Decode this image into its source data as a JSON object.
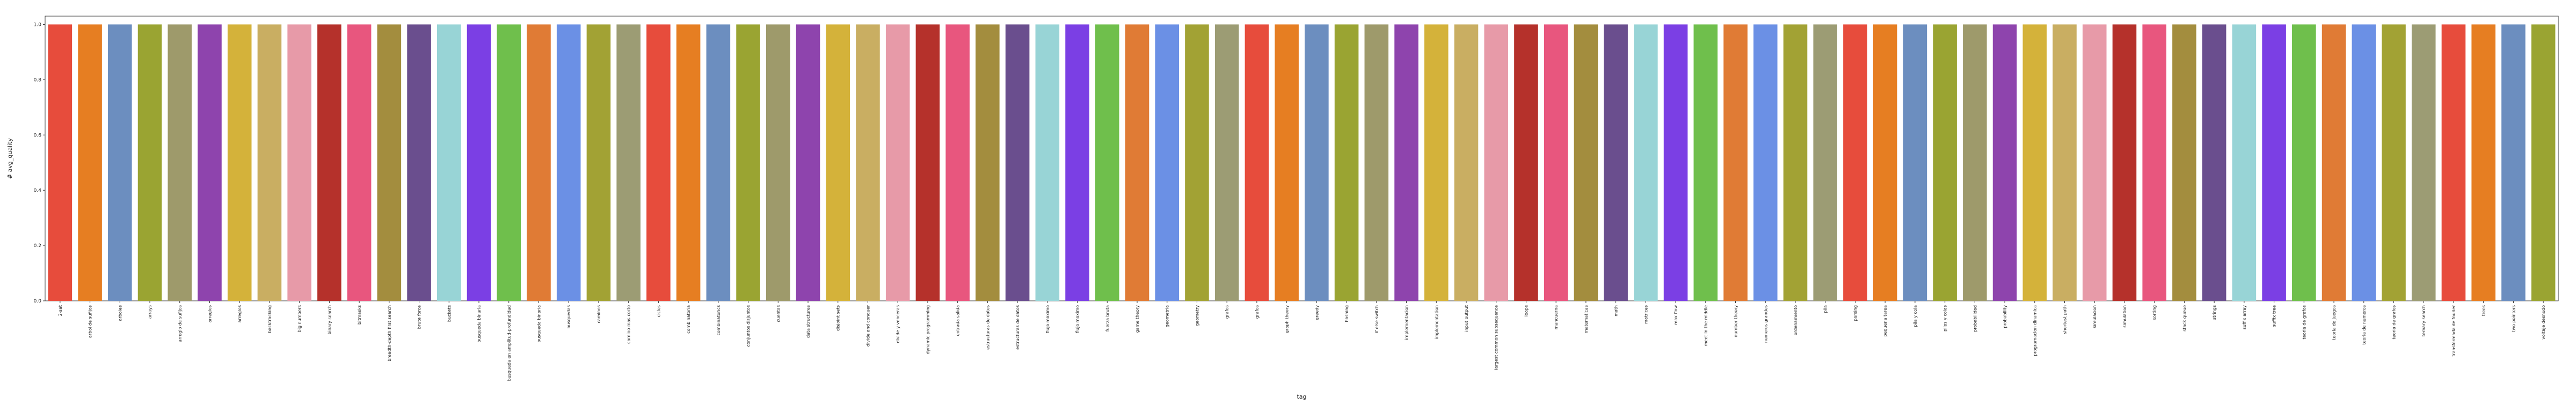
{
  "chart_data": {
    "type": "bar",
    "title": "",
    "xlabel": "tag",
    "ylabel": "# avg_quality",
    "ylim": [
      0,
      1.03
    ],
    "yticks": [
      0.0,
      0.2,
      0.4,
      0.6,
      0.8,
      1.0
    ],
    "ytick_labels": [
      "0.0",
      "0.2",
      "0.4",
      "0.6",
      "0.8",
      "1.0"
    ],
    "grid": false,
    "legend": "none",
    "palette": [
      "#e74c3c",
      "#e67e22",
      "#6c8ebf",
      "#9aa432",
      "#9e9a6b",
      "#8e44ad",
      "#d4b23a",
      "#c9ae62",
      "#e79aa8",
      "#b5312b",
      "#e8567e",
      "#a38d3e",
      "#6a4e8e",
      "#98d4d6",
      "#7b3fe4",
      "#6fbf4c",
      "#e07b35",
      "#6b90e5",
      "#a2a234",
      "#9c9c74"
    ],
    "categories": [
      "2-sat",
      "arbol de sufijos",
      "arboles",
      "arrays",
      "arreglo de sufijos",
      "arreglos",
      "arreglos",
      "backtracking",
      "big numbers",
      "binary search",
      "bitmasks",
      "breadth-depth first search",
      "brute force",
      "buckets",
      "busqueda binaria",
      "busqueda en amplitud-profundidad",
      "busqueda binaria",
      "busquedas",
      "caminos",
      "camino mas corto",
      "ciclos",
      "combinatoria",
      "combinatorics",
      "conjuntos disjuntos",
      "cuentas",
      "data structures",
      "disjoint sets",
      "divide and conquer",
      "divide y venceras",
      "dynamic programming",
      "entrada salida",
      "estructuras de datos",
      "estructuras de datos",
      "flujo maximo",
      "flujo maximo",
      "fuerza bruta",
      "game theory",
      "geometria",
      "geometry",
      "grafos",
      "grafos",
      "graph theory",
      "greedy",
      "hashing",
      "if else switch",
      "implementacion",
      "implementation",
      "input output",
      "largest common subsequence",
      "loops",
      "mancuerna",
      "matematicas",
      "math",
      "matrices",
      "max flow",
      "meet in the middle",
      "number theory",
      "numeros grandes",
      "ordenamiento",
      "pila",
      "parsing",
      "pequena tarea",
      "pila y cola",
      "pilas y colas",
      "probabilidad",
      "probability",
      "programacion dinamica",
      "shortest path",
      "simulacion",
      "simulation",
      "sorting",
      "stack queue",
      "strings",
      "suffix array",
      "suffix tree",
      "teoria de grafos",
      "teoria de juegos",
      "teoria de numeros",
      "teoria de grafos",
      "ternary search",
      "transformada de fourier",
      "trees",
      "two pointers",
      "voltaje desnudo"
    ],
    "values": [
      1,
      1,
      1,
      1,
      1,
      1,
      1,
      1,
      1,
      1,
      1,
      1,
      1,
      1,
      1,
      1,
      1,
      1,
      1,
      1,
      1,
      1,
      1,
      1,
      1,
      1,
      1,
      1,
      1,
      1,
      1,
      1,
      1,
      1,
      1,
      1,
      1,
      1,
      1,
      1,
      1,
      1,
      1,
      1,
      1,
      1,
      1,
      1,
      1,
      1,
      1,
      1,
      1,
      1,
      1,
      1,
      1,
      1,
      1,
      1,
      1,
      1,
      1,
      1,
      1,
      1,
      1,
      1,
      1,
      1,
      1,
      1,
      1,
      1,
      1,
      1,
      1,
      1,
      1,
      1,
      1,
      1,
      1,
      1
    ]
  }
}
